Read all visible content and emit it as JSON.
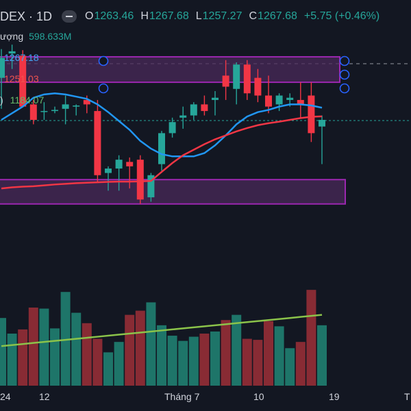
{
  "header": {
    "symbol": "DEX · 1D",
    "o_label": "O",
    "o_value": "1263.46",
    "h_label": "H",
    "h_value": "1267.68",
    "l_label": "L",
    "l_value": "1257.27",
    "c_label": "C",
    "c_value": "1267.68",
    "change": "+5.75 (+0.46%)"
  },
  "volume_indicator": {
    "label": "ượng",
    "value": "598.633M"
  },
  "ma_labels": {
    "blue": "1267.18",
    "red": "1251.03",
    "green_prefix": ")",
    "green": "1184.07"
  },
  "x_axis": {
    "labels": [
      "24",
      "12",
      "Tháng 7",
      "10",
      "19",
      "T"
    ]
  },
  "colors": {
    "background": "#131722",
    "up": "#26a69a",
    "down": "#f23645",
    "ma_short": "#2196f3",
    "ma_long": "#f23645",
    "volume_ma": "#8bc34a",
    "zone_border": "#9c27b0",
    "zone_fill": "#4a2a5a"
  },
  "chart_data": {
    "type": "candlestick",
    "candles": [
      {
        "o": 1255.0,
        "h": 1268.0,
        "l": 1241.0,
        "c": 1264.0
      },
      {
        "o": 1266.0,
        "h": 1270.0,
        "l": 1259.0,
        "c": 1267.0
      },
      {
        "o": 1265.0,
        "h": 1267.5,
        "l": 1242.0,
        "c": 1242.0
      },
      {
        "o": 1243.0,
        "h": 1245.0,
        "l": 1234.0,
        "c": 1236.0
      },
      {
        "o": 1240.0,
        "h": 1244.0,
        "l": 1236.0,
        "c": 1240.0
      },
      {
        "o": 1240.0,
        "h": 1242.0,
        "l": 1239.0,
        "c": 1240.5
      },
      {
        "o": 1241.0,
        "h": 1247.0,
        "l": 1234.0,
        "c": 1243.0
      },
      {
        "o": 1242.0,
        "h": 1243.0,
        "l": 1238.0,
        "c": 1242.5
      },
      {
        "o": 1245.0,
        "h": 1247.0,
        "l": 1239.0,
        "c": 1243.0
      },
      {
        "o": 1240.0,
        "h": 1245.0,
        "l": 1208.0,
        "c": 1211.0
      },
      {
        "o": 1212.0,
        "h": 1215.0,
        "l": 1204.0,
        "c": 1214.0
      },
      {
        "o": 1214.0,
        "h": 1220.0,
        "l": 1204.0,
        "c": 1218.0
      },
      {
        "o": 1217.0,
        "h": 1219.0,
        "l": 1205.0,
        "c": 1215.0
      },
      {
        "o": 1218.0,
        "h": 1220.0,
        "l": 1198.0,
        "c": 1200.0
      },
      {
        "o": 1201.0,
        "h": 1212.0,
        "l": 1199.0,
        "c": 1211.0
      },
      {
        "o": 1216.0,
        "h": 1231.0,
        "l": 1213.0,
        "c": 1230.0
      },
      {
        "o": 1230.0,
        "h": 1237.0,
        "l": 1228.0,
        "c": 1235.0
      },
      {
        "o": 1237.0,
        "h": 1242.0,
        "l": 1232.0,
        "c": 1238.0
      },
      {
        "o": 1238.0,
        "h": 1244.0,
        "l": 1236.0,
        "c": 1243.0
      },
      {
        "o": 1243.0,
        "h": 1247.0,
        "l": 1238.0,
        "c": 1240.0
      },
      {
        "o": 1245.0,
        "h": 1249.0,
        "l": 1238.0,
        "c": 1246.0
      },
      {
        "o": 1256.0,
        "h": 1263.0,
        "l": 1245.0,
        "c": 1251.0
      },
      {
        "o": 1250.0,
        "h": 1262.0,
        "l": 1243.0,
        "c": 1261.0
      },
      {
        "o": 1261.0,
        "h": 1263.0,
        "l": 1245.0,
        "c": 1248.0
      },
      {
        "o": 1255.0,
        "h": 1259.0,
        "l": 1244.0,
        "c": 1247.0
      },
      {
        "o": 1247.0,
        "h": 1256.0,
        "l": 1239.0,
        "c": 1242.0
      },
      {
        "o": 1243.0,
        "h": 1248.0,
        "l": 1240.0,
        "c": 1247.0
      },
      {
        "o": 1245.0,
        "h": 1248.0,
        "l": 1242.0,
        "c": 1246.0
      },
      {
        "o": 1245.0,
        "h": 1253.0,
        "l": 1237.0,
        "c": 1243.0
      },
      {
        "o": 1247.0,
        "h": 1253.0,
        "l": 1226.0,
        "c": 1230.0
      },
      {
        "o": 1233.0,
        "h": 1238.0,
        "l": 1216.0,
        "c": 1236.0
      }
    ],
    "ma_short": [
      1236,
      1239,
      1242,
      1246,
      1247.5,
      1248,
      1247.5,
      1246.5,
      1245.5,
      1243,
      1239.5,
      1235.5,
      1231.5,
      1226.5,
      1223,
      1220.5,
      1219.5,
      1219.5,
      1219.5,
      1221,
      1224.5,
      1229,
      1234,
      1237.5,
      1239.5,
      1240.5,
      1242,
      1243,
      1243,
      1242.5,
      1241.5
    ],
    "ma_long": [
      1205,
      1205.5,
      1205.8,
      1206,
      1206.4,
      1206.8,
      1207.1,
      1207.4,
      1207.6,
      1207.8,
      1208,
      1208.1,
      1208.1,
      1208.2,
      1208.4,
      1212.5,
      1216.5,
      1220,
      1222.5,
      1225,
      1227.2,
      1229,
      1230.8,
      1232.3,
      1233.6,
      1234.5,
      1235.2,
      1236,
      1236.8,
      1237.4,
      1237.6
    ],
    "volumes": [
      65,
      50,
      54,
      75,
      74,
      55,
      90,
      70,
      60,
      45,
      32,
      42,
      68,
      72,
      80,
      58,
      48,
      43,
      47,
      50,
      52,
      63,
      68,
      45,
      44,
      62,
      57,
      36,
      42,
      92,
      58
    ],
    "volume_ma": [
      38,
      39,
      40,
      41,
      42,
      43,
      44,
      45,
      46,
      47,
      48,
      49,
      50,
      51,
      52,
      53,
      54,
      55,
      56,
      57,
      58,
      59,
      60,
      61,
      62,
      63,
      64,
      65,
      66,
      67,
      68
    ],
    "zones": [
      {
        "top": 1264.5,
        "bottom": 1253.0
      },
      {
        "top": 1209.0,
        "bottom": 1198.0
      }
    ],
    "x_labels": [
      "24",
      "12",
      "Tháng 7",
      "10",
      "19",
      "T"
    ]
  }
}
